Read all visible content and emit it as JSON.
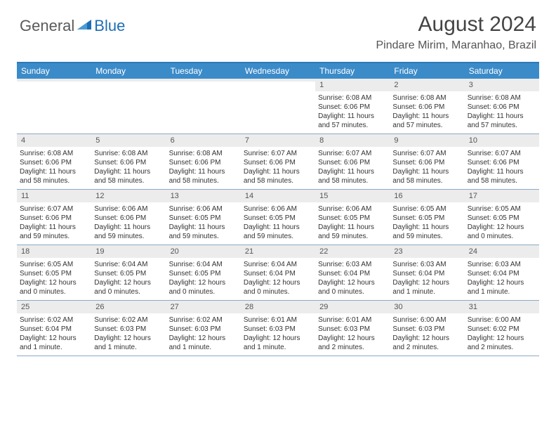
{
  "logo": {
    "general": "General",
    "blue": "Blue"
  },
  "title": "August 2024",
  "location": "Pindare Mirim, Maranhao, Brazil",
  "colors": {
    "header_bg": "#3b8bc9",
    "header_border": "#2f78b9",
    "row_border": "#8aa9c4",
    "daynum_bg": "#ececec",
    "logo_blue": "#1f6db5",
    "text": "#333333"
  },
  "days_of_week": [
    "Sunday",
    "Monday",
    "Tuesday",
    "Wednesday",
    "Thursday",
    "Friday",
    "Saturday"
  ],
  "weeks": [
    [
      {
        "n": "",
        "r": "",
        "s": "",
        "d1": "",
        "d2": ""
      },
      {
        "n": "",
        "r": "",
        "s": "",
        "d1": "",
        "d2": ""
      },
      {
        "n": "",
        "r": "",
        "s": "",
        "d1": "",
        "d2": ""
      },
      {
        "n": "",
        "r": "",
        "s": "",
        "d1": "",
        "d2": ""
      },
      {
        "n": "1",
        "r": "Sunrise: 6:08 AM",
        "s": "Sunset: 6:06 PM",
        "d1": "Daylight: 11 hours",
        "d2": "and 57 minutes."
      },
      {
        "n": "2",
        "r": "Sunrise: 6:08 AM",
        "s": "Sunset: 6:06 PM",
        "d1": "Daylight: 11 hours",
        "d2": "and 57 minutes."
      },
      {
        "n": "3",
        "r": "Sunrise: 6:08 AM",
        "s": "Sunset: 6:06 PM",
        "d1": "Daylight: 11 hours",
        "d2": "and 57 minutes."
      }
    ],
    [
      {
        "n": "4",
        "r": "Sunrise: 6:08 AM",
        "s": "Sunset: 6:06 PM",
        "d1": "Daylight: 11 hours",
        "d2": "and 58 minutes."
      },
      {
        "n": "5",
        "r": "Sunrise: 6:08 AM",
        "s": "Sunset: 6:06 PM",
        "d1": "Daylight: 11 hours",
        "d2": "and 58 minutes."
      },
      {
        "n": "6",
        "r": "Sunrise: 6:08 AM",
        "s": "Sunset: 6:06 PM",
        "d1": "Daylight: 11 hours",
        "d2": "and 58 minutes."
      },
      {
        "n": "7",
        "r": "Sunrise: 6:07 AM",
        "s": "Sunset: 6:06 PM",
        "d1": "Daylight: 11 hours",
        "d2": "and 58 minutes."
      },
      {
        "n": "8",
        "r": "Sunrise: 6:07 AM",
        "s": "Sunset: 6:06 PM",
        "d1": "Daylight: 11 hours",
        "d2": "and 58 minutes."
      },
      {
        "n": "9",
        "r": "Sunrise: 6:07 AM",
        "s": "Sunset: 6:06 PM",
        "d1": "Daylight: 11 hours",
        "d2": "and 58 minutes."
      },
      {
        "n": "10",
        "r": "Sunrise: 6:07 AM",
        "s": "Sunset: 6:06 PM",
        "d1": "Daylight: 11 hours",
        "d2": "and 58 minutes."
      }
    ],
    [
      {
        "n": "11",
        "r": "Sunrise: 6:07 AM",
        "s": "Sunset: 6:06 PM",
        "d1": "Daylight: 11 hours",
        "d2": "and 59 minutes."
      },
      {
        "n": "12",
        "r": "Sunrise: 6:06 AM",
        "s": "Sunset: 6:06 PM",
        "d1": "Daylight: 11 hours",
        "d2": "and 59 minutes."
      },
      {
        "n": "13",
        "r": "Sunrise: 6:06 AM",
        "s": "Sunset: 6:05 PM",
        "d1": "Daylight: 11 hours",
        "d2": "and 59 minutes."
      },
      {
        "n": "14",
        "r": "Sunrise: 6:06 AM",
        "s": "Sunset: 6:05 PM",
        "d1": "Daylight: 11 hours",
        "d2": "and 59 minutes."
      },
      {
        "n": "15",
        "r": "Sunrise: 6:06 AM",
        "s": "Sunset: 6:05 PM",
        "d1": "Daylight: 11 hours",
        "d2": "and 59 minutes."
      },
      {
        "n": "16",
        "r": "Sunrise: 6:05 AM",
        "s": "Sunset: 6:05 PM",
        "d1": "Daylight: 11 hours",
        "d2": "and 59 minutes."
      },
      {
        "n": "17",
        "r": "Sunrise: 6:05 AM",
        "s": "Sunset: 6:05 PM",
        "d1": "Daylight: 12 hours",
        "d2": "and 0 minutes."
      }
    ],
    [
      {
        "n": "18",
        "r": "Sunrise: 6:05 AM",
        "s": "Sunset: 6:05 PM",
        "d1": "Daylight: 12 hours",
        "d2": "and 0 minutes."
      },
      {
        "n": "19",
        "r": "Sunrise: 6:04 AM",
        "s": "Sunset: 6:05 PM",
        "d1": "Daylight: 12 hours",
        "d2": "and 0 minutes."
      },
      {
        "n": "20",
        "r": "Sunrise: 6:04 AM",
        "s": "Sunset: 6:05 PM",
        "d1": "Daylight: 12 hours",
        "d2": "and 0 minutes."
      },
      {
        "n": "21",
        "r": "Sunrise: 6:04 AM",
        "s": "Sunset: 6:04 PM",
        "d1": "Daylight: 12 hours",
        "d2": "and 0 minutes."
      },
      {
        "n": "22",
        "r": "Sunrise: 6:03 AM",
        "s": "Sunset: 6:04 PM",
        "d1": "Daylight: 12 hours",
        "d2": "and 0 minutes."
      },
      {
        "n": "23",
        "r": "Sunrise: 6:03 AM",
        "s": "Sunset: 6:04 PM",
        "d1": "Daylight: 12 hours",
        "d2": "and 1 minute."
      },
      {
        "n": "24",
        "r": "Sunrise: 6:03 AM",
        "s": "Sunset: 6:04 PM",
        "d1": "Daylight: 12 hours",
        "d2": "and 1 minute."
      }
    ],
    [
      {
        "n": "25",
        "r": "Sunrise: 6:02 AM",
        "s": "Sunset: 6:04 PM",
        "d1": "Daylight: 12 hours",
        "d2": "and 1 minute."
      },
      {
        "n": "26",
        "r": "Sunrise: 6:02 AM",
        "s": "Sunset: 6:03 PM",
        "d1": "Daylight: 12 hours",
        "d2": "and 1 minute."
      },
      {
        "n": "27",
        "r": "Sunrise: 6:02 AM",
        "s": "Sunset: 6:03 PM",
        "d1": "Daylight: 12 hours",
        "d2": "and 1 minute."
      },
      {
        "n": "28",
        "r": "Sunrise: 6:01 AM",
        "s": "Sunset: 6:03 PM",
        "d1": "Daylight: 12 hours",
        "d2": "and 1 minute."
      },
      {
        "n": "29",
        "r": "Sunrise: 6:01 AM",
        "s": "Sunset: 6:03 PM",
        "d1": "Daylight: 12 hours",
        "d2": "and 2 minutes."
      },
      {
        "n": "30",
        "r": "Sunrise: 6:00 AM",
        "s": "Sunset: 6:03 PM",
        "d1": "Daylight: 12 hours",
        "d2": "and 2 minutes."
      },
      {
        "n": "31",
        "r": "Sunrise: 6:00 AM",
        "s": "Sunset: 6:02 PM",
        "d1": "Daylight: 12 hours",
        "d2": "and 2 minutes."
      }
    ]
  ]
}
